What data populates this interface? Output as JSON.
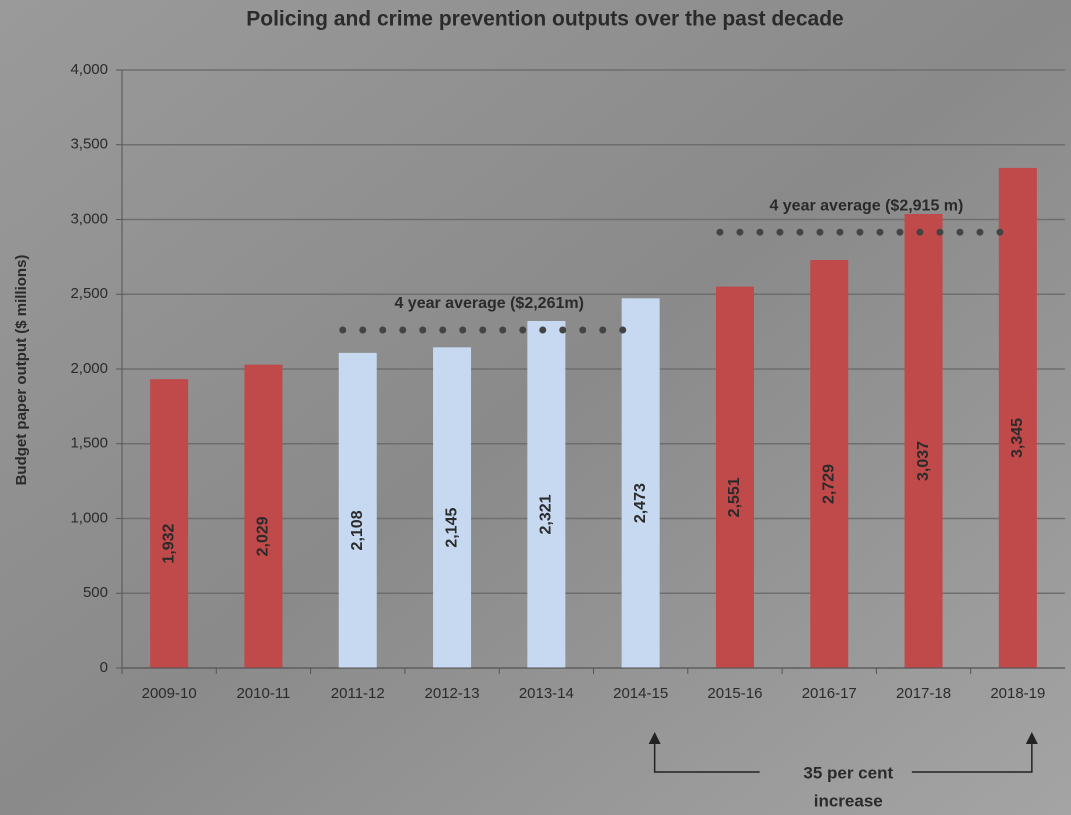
{
  "chart_data": {
    "type": "bar",
    "title": "Policing and crime prevention outputs over the past decade",
    "y_label": "Budget paper output ($ millions)",
    "categories": [
      "2009-10",
      "2010-11",
      "2011-12",
      "2012-13",
      "2013-14",
      "2014-15",
      "2015-16",
      "2016-17",
      "2017-18",
      "2018-19"
    ],
    "values": [
      1932,
      2029,
      2108,
      2145,
      2321,
      2473,
      2551,
      2729,
      3037,
      3345
    ],
    "value_labels": [
      "1,932",
      "2,029",
      "2,108",
      "2,145",
      "2,321",
      "2,473",
      "2,551",
      "2,729",
      "3,037",
      "3,345"
    ],
    "colors": [
      "#c0494a",
      "#c0494a",
      "#c6d9f1",
      "#c6d9f1",
      "#c6d9f1",
      "#c6d9f1",
      "#c0494a",
      "#c0494a",
      "#c0494a",
      "#c0494a"
    ],
    "ylim": [
      0,
      4000
    ],
    "yticks": [
      0,
      500,
      {
        "value": 1000,
        "label": "1,000"
      },
      {
        "value": 1500,
        "label": "1,500"
      },
      {
        "value": 2000,
        "label": "2,000"
      },
      {
        "value": 2500,
        "label": "2,500"
      },
      {
        "value": 3000,
        "label": "3,000"
      },
      {
        "value": 3500,
        "label": "3,500"
      },
      {
        "value": 4000,
        "label": "4,000"
      }
    ],
    "grid": true,
    "averages": [
      {
        "label": "4 year average ($2,261m)",
        "value": 2261,
        "span": [
          "2011-12",
          "2014-15"
        ]
      },
      {
        "label": "4 year average ($2,915 m)",
        "value": 2915,
        "span": [
          "2015-16",
          "2018-19"
        ]
      }
    ],
    "increase_note": {
      "lines": [
        "35 per cent",
        "increase"
      ],
      "span": [
        "2014-15",
        "2018-19"
      ]
    }
  }
}
